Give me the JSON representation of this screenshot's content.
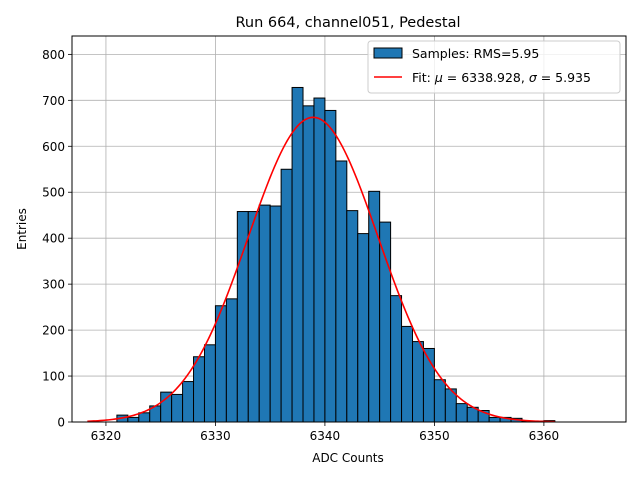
{
  "chart_data": {
    "type": "bar",
    "title": "Run 664, channel051, Pedestal",
    "xlabel": "ADC Counts",
    "ylabel": "Entries",
    "xlim": [
      6316.9,
      6367.5
    ],
    "ylim": [
      0,
      840
    ],
    "xticks": [
      6320,
      6330,
      6340,
      6350,
      6360
    ],
    "yticks": [
      0,
      100,
      200,
      300,
      400,
      500,
      600,
      700,
      800
    ],
    "grid": true,
    "legend_position": "top-right",
    "series": [
      {
        "name": "Samples: RMS=5.95",
        "kind": "histogram",
        "bin_width": 1,
        "color": "#1f77b4",
        "edge_color": "#000000",
        "bins": [
          {
            "x0": 6321,
            "count": 15
          },
          {
            "x0": 6322,
            "count": 10
          },
          {
            "x0": 6323,
            "count": 20
          },
          {
            "x0": 6324,
            "count": 35
          },
          {
            "x0": 6325,
            "count": 65
          },
          {
            "x0": 6326,
            "count": 60
          },
          {
            "x0": 6327,
            "count": 88
          },
          {
            "x0": 6328,
            "count": 142
          },
          {
            "x0": 6329,
            "count": 168
          },
          {
            "x0": 6330,
            "count": 253
          },
          {
            "x0": 6331,
            "count": 268
          },
          {
            "x0": 6332,
            "count": 458
          },
          {
            "x0": 6333,
            "count": 458
          },
          {
            "x0": 6334,
            "count": 472
          },
          {
            "x0": 6335,
            "count": 470
          },
          {
            "x0": 6336,
            "count": 550
          },
          {
            "x0": 6337,
            "count": 728
          },
          {
            "x0": 6338,
            "count": 688
          },
          {
            "x0": 6339,
            "count": 705
          },
          {
            "x0": 6340,
            "count": 678
          },
          {
            "x0": 6341,
            "count": 568
          },
          {
            "x0": 6342,
            "count": 460
          },
          {
            "x0": 6343,
            "count": 410
          },
          {
            "x0": 6344,
            "count": 502
          },
          {
            "x0": 6345,
            "count": 435
          },
          {
            "x0": 6346,
            "count": 275
          },
          {
            "x0": 6347,
            "count": 208
          },
          {
            "x0": 6348,
            "count": 175
          },
          {
            "x0": 6349,
            "count": 160
          },
          {
            "x0": 6350,
            "count": 92
          },
          {
            "x0": 6351,
            "count": 72
          },
          {
            "x0": 6352,
            "count": 40
          },
          {
            "x0": 6353,
            "count": 32
          },
          {
            "x0": 6354,
            "count": 25
          },
          {
            "x0": 6355,
            "count": 10
          },
          {
            "x0": 6356,
            "count": 10
          },
          {
            "x0": 6357,
            "count": 8
          },
          {
            "x0": 6358,
            "count": 2
          },
          {
            "x0": 6359,
            "count": 2
          },
          {
            "x0": 6360,
            "count": 3
          }
        ]
      },
      {
        "name": "Fit: μ = 6338.928, σ = 5.935",
        "kind": "gaussian_fit",
        "color": "#ff0000",
        "mu": 6338.928,
        "sigma": 5.935,
        "amplitude": 663,
        "x_range": [
          6318.3,
          6361.0
        ]
      }
    ],
    "legend": {
      "hist_label": "Samples: RMS=5.95",
      "fit_label_prefix": "Fit: ",
      "fit_mu_symbol": "μ",
      "fit_mu_text": " = 6338.928, ",
      "fit_sigma_symbol": "σ",
      "fit_sigma_text": " = 5.935"
    }
  }
}
